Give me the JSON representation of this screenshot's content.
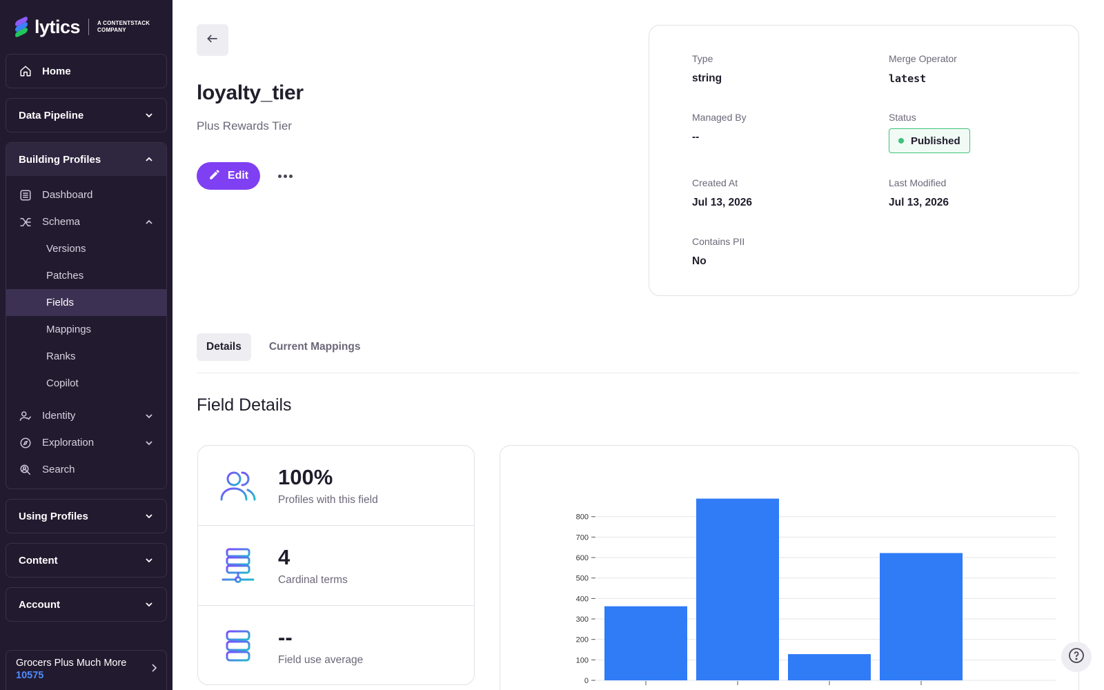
{
  "brand": {
    "name": "lytics",
    "tagline_line1": "A CONTENTSTACK",
    "tagline_line2": "COMPANY"
  },
  "sidebar": {
    "home": "Home",
    "data_pipeline": "Data Pipeline",
    "building_profiles": "Building Profiles",
    "items": {
      "dashboard": "Dashboard",
      "schema": "Schema",
      "versions": "Versions",
      "patches": "Patches",
      "fields": "Fields",
      "mappings": "Mappings",
      "ranks": "Ranks",
      "copilot": "Copilot",
      "identity": "Identity",
      "exploration": "Exploration",
      "search": "Search"
    },
    "using_profiles": "Using Profiles",
    "content": "Content",
    "account": "Account"
  },
  "account_switcher": {
    "name": "Grocers Plus Much More",
    "id": "10575"
  },
  "field": {
    "title": "loyalty_tier",
    "subtitle": "Plus Rewards Tier",
    "edit_label": "Edit"
  },
  "meta": {
    "type_label": "Type",
    "type_value": "string",
    "merge_label": "Merge Operator",
    "merge_value": "latest",
    "managed_label": "Managed By",
    "managed_value": "--",
    "status_label": "Status",
    "status_value": "Published",
    "created_label": "Created At",
    "created_value": "Jul 13, 2026",
    "modified_label": "Last Modified",
    "modified_value": "Jul 13, 2026",
    "pii_label": "Contains PII",
    "pii_value": "No"
  },
  "tabs": {
    "details": "Details",
    "mappings": "Current Mappings"
  },
  "section_title": "Field Details",
  "stats": [
    {
      "value": "100%",
      "label": "Profiles with this field"
    },
    {
      "value": "4",
      "label": "Cardinal terms"
    },
    {
      "value": "--",
      "label": "Field use average"
    }
  ],
  "colors": {
    "accent": "#7f3ff2",
    "bar": "#2f7cf6",
    "published": "#3ec27a",
    "sidebar_bg": "#221a2f"
  },
  "chart_data": {
    "type": "bar",
    "categories": [
      "",
      "",
      "",
      ""
    ],
    "values": [
      362,
      888,
      128,
      622
    ],
    "title": "",
    "xlabel": "",
    "ylabel": "",
    "ylim": [
      0,
      880
    ],
    "yticks": [
      0,
      100,
      200,
      300,
      400,
      500,
      600,
      700,
      800
    ],
    "grid": true
  }
}
